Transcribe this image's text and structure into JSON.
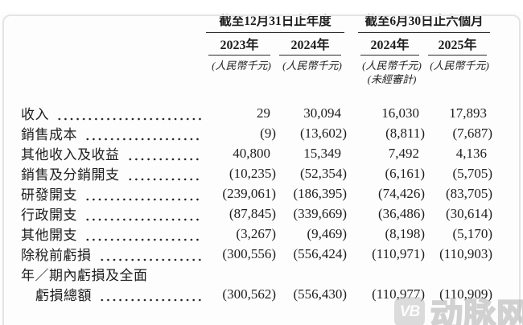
{
  "table": {
    "col_groups": [
      {
        "title": "截至12月31日止年度"
      },
      {
        "title": "截至6月30日止六個月"
      }
    ],
    "columns": [
      {
        "year": "2023年",
        "unit": "(人民幣千元)",
        "note": ""
      },
      {
        "year": "2024年",
        "unit": "(人民幣千元)",
        "note": ""
      },
      {
        "year": "2024年",
        "unit": "(人民幣千元)",
        "note": "(未經審計)"
      },
      {
        "year": "2025年",
        "unit": "(人民幣千元)",
        "note": ""
      }
    ],
    "rows": [
      {
        "label": "收入",
        "values": [
          "29",
          "30,094",
          "16,030",
          "17,893"
        ]
      },
      {
        "label": "銷售成本",
        "values": [
          "(9)",
          "(13,602)",
          "(8,811)",
          "(7,687)"
        ]
      },
      {
        "label": "其他收入及收益",
        "values": [
          "40,800",
          "15,349",
          "7,492",
          "4,136"
        ]
      },
      {
        "label": "銷售及分銷開支",
        "values": [
          "(10,235)",
          "(52,354)",
          "(6,161)",
          "(5,705)"
        ]
      },
      {
        "label": "研發開支",
        "values": [
          "(239,061)",
          "(186,395)",
          "(74,426)",
          "(83,705)"
        ]
      },
      {
        "label": "行政開支",
        "values": [
          "(87,845)",
          "(339,669)",
          "(36,486)",
          "(30,614)"
        ]
      },
      {
        "label": "其他開支",
        "values": [
          "(3,267)",
          "(9,469)",
          "(8,198)",
          "(5,170)"
        ]
      },
      {
        "label": "除稅前虧損",
        "values": [
          "(300,556)",
          "(556,424)",
          "(110,971)",
          "(110,903)"
        ]
      },
      {
        "label": "年／期內虧損及全面",
        "values": null
      },
      {
        "label": "虧損總額",
        "values": [
          "(300,562)",
          "(556,430)",
          "(110,977)",
          "(110,909)"
        ],
        "indent": true
      }
    ]
  },
  "watermark": {
    "badge": "VB",
    "text": "动脉网"
  }
}
